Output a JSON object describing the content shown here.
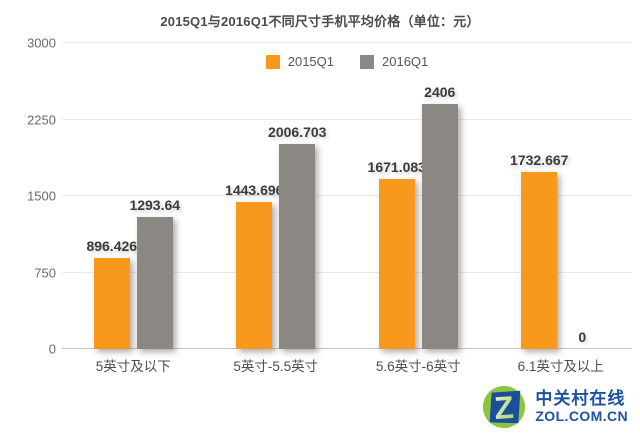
{
  "title": "2015Q1与2016Q1不同尺寸手机平均价格（单位：元）",
  "chart_data": {
    "type": "bar",
    "title": "2015Q1与2016Q1不同尺寸手机平均价格（单位：元）",
    "categories": [
      "5英寸及以下",
      "5英寸-5.5英寸",
      "5.6英寸-6英寸",
      "6.1英寸及以上"
    ],
    "series": [
      {
        "name": "2015Q1",
        "color": "#F8981D",
        "values": [
          896.426,
          1443.696,
          1671.083,
          1732.667
        ]
      },
      {
        "name": "2016Q1",
        "color": "#8B8782",
        "values": [
          1293.64,
          2006.703,
          2406,
          0
        ]
      }
    ],
    "xlabel": "",
    "ylabel": "",
    "ylim": [
      0,
      3000
    ],
    "yticks": [
      0,
      750,
      1500,
      2250,
      3000
    ],
    "grid": true,
    "legend_position": "top-center",
    "value_label_color": "#3b3b3b",
    "grid_color": "#e9e9e9",
    "baseline_color": "#c6c6c4"
  },
  "watermark": {
    "cn": "中关村在线",
    "en": "ZOL.COM.CN",
    "text_color": "#1E51A2",
    "circle_color": "#8CC63E",
    "z_color": "#1C4E9E"
  }
}
